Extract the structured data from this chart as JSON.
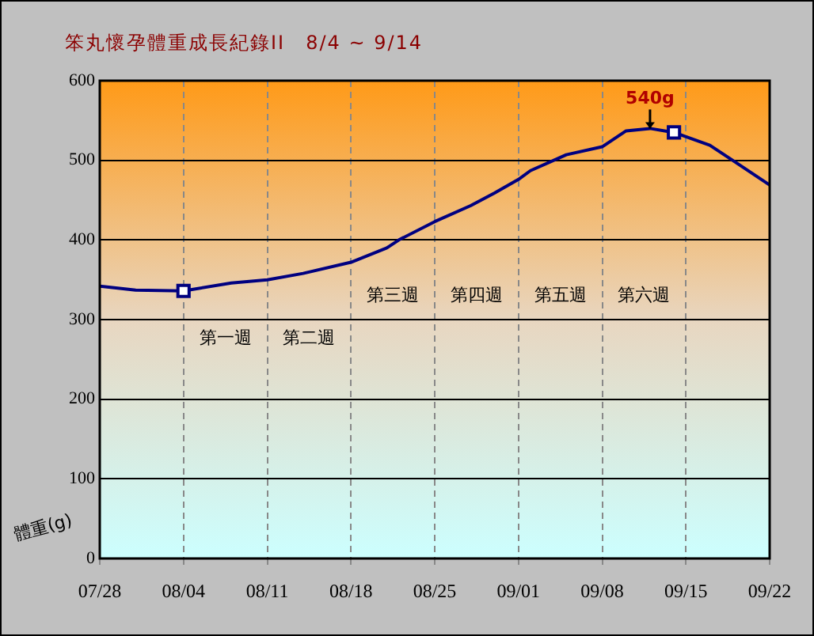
{
  "chart_data": {
    "type": "line",
    "title": "笨丸懷孕體重成長紀錄II　8/4 ~ 9/14",
    "ylabel": "體重(g)",
    "xlim": [
      "--07-28",
      "--09-22"
    ],
    "xticks": [
      {
        "value": "--07-28",
        "label": "07/28"
      },
      {
        "value": "--08-04",
        "label": "08/04"
      },
      {
        "value": "--08-11",
        "label": "08/11"
      },
      {
        "value": "--08-18",
        "label": "08/18"
      },
      {
        "value": "--08-25",
        "label": "08/25"
      },
      {
        "value": "--09-01",
        "label": "09/01"
      },
      {
        "value": "--09-08",
        "label": "09/08"
      },
      {
        "value": "--09-15",
        "label": "09/15"
      },
      {
        "value": "--09-22",
        "label": "09/22"
      }
    ],
    "ylim": [
      0,
      600
    ],
    "yticks": [
      0,
      100,
      200,
      300,
      400,
      500,
      600
    ],
    "grid": true,
    "legend": false,
    "series": [
      {
        "color": "#000080",
        "marker": "none",
        "x": [
          "--07-28",
          "--07-31",
          "--08-04",
          "--08-08",
          "--08-11",
          "--08-14",
          "--08-18",
          "--08-21",
          "--08-22",
          "--08-25",
          "--08-28",
          "--08-30",
          "--09-01",
          "--09-02",
          "--09-05",
          "--09-08",
          "--09-10",
          "--09-12",
          "--09-14",
          "--09-17",
          "--09-19",
          "--09-22"
        ],
        "values": [
          342,
          337,
          336,
          346,
          350,
          358,
          372,
          390,
          400,
          423,
          443,
          459,
          476,
          487,
          507,
          517,
          537,
          540,
          535,
          519,
          499,
          469
        ]
      },
      {
        "type": "scatter",
        "color": "#000080",
        "marker": "square",
        "x": [
          "--08-04",
          "--09-14"
        ],
        "values": [
          336,
          535
        ]
      }
    ],
    "annotations": [
      {
        "text": "540g",
        "x": "--09-12",
        "y": 540
      },
      "第一週",
      "第二週",
      "第三週",
      "第四週",
      "第五週",
      "第六週"
    ]
  }
}
